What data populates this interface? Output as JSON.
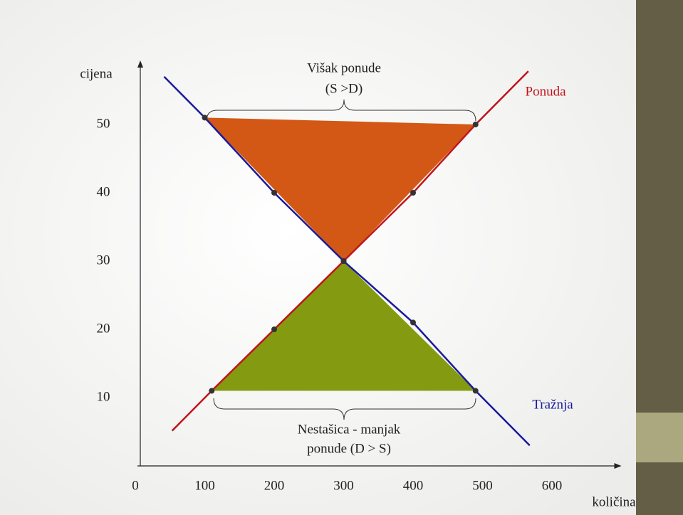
{
  "chart_data": {
    "type": "line",
    "x_label": "količina",
    "y_label": "cijena",
    "xlim": [
      0,
      700
    ],
    "ylim": [
      0,
      60
    ],
    "xticks": [
      0,
      100,
      200,
      300,
      400,
      500,
      600
    ],
    "yticks": [
      10,
      20,
      30,
      40,
      50
    ],
    "series": [
      {
        "name": "Ponuda",
        "color": "#c0141c",
        "x": [
          110,
          200,
          300,
          400,
          490
        ],
        "values": [
          11,
          20,
          30,
          40,
          50
        ]
      },
      {
        "name": "Tražnja",
        "color": "#1a1a9c",
        "x": [
          100,
          200,
          300,
          400,
          490
        ],
        "values": [
          51,
          40,
          30,
          21,
          11
        ]
      }
    ],
    "surplus": {
      "label": [
        "Višak ponude",
        "(S >D)"
      ],
      "color": "#d35815"
    },
    "shortage": {
      "label": [
        "Nestašica - manjak",
        "ponude (D > S)"
      ],
      "color": "#849a10"
    }
  }
}
